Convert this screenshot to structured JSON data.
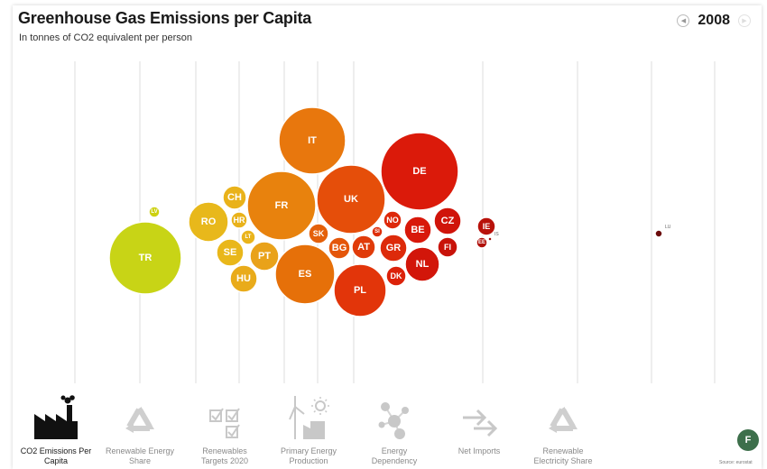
{
  "header": {
    "title": "Greenhouse Gas Emissions per Capita",
    "subtitle": "In tonnes of CO2 equivalent per person",
    "year": "2008",
    "prev_icon": "chevron-left-icon",
    "next_icon": "chevron-right-icon"
  },
  "chart_data": {
    "type": "scatter",
    "title": "Greenhouse Gas Emissions per Capita",
    "subtitle": "In tonnes of CO2 equivalent per person",
    "x_axis_ticks": [
      "",
      "",
      "",
      "",
      "",
      "",
      "",
      "",
      "",
      "",
      ""
    ],
    "x_positions": [
      "",
      "",
      "",
      "",
      "",
      "",
      "",
      "",
      "",
      "",
      ""
    ],
    "color_scale": [
      "#c8d416",
      "#e9b21a",
      "#e8820d",
      "#e64f0a",
      "#db1a0a",
      "#7a0a0a"
    ],
    "points": [
      {
        "label": "TR",
        "value": 5.0,
        "size": 80,
        "color": "#c8d416"
      },
      {
        "label": "LV",
        "value": 5.2,
        "size": 2.2,
        "color": "#cdd111"
      },
      {
        "label": "RO",
        "value": 7.0,
        "size": 21.5,
        "color": "#e8b81b"
      },
      {
        "label": "CH",
        "value": 7.6,
        "size": 7.7,
        "color": "#e9b21a"
      },
      {
        "label": "HR",
        "value": 7.6,
        "size": 4.4,
        "color": "#e9b21a"
      },
      {
        "label": "LT",
        "value": 7.8,
        "size": 3.3,
        "color": "#eab41b"
      },
      {
        "label": "SE",
        "value": 7.3,
        "size": 9.3,
        "color": "#e9b71a"
      },
      {
        "label": "PT",
        "value": 8.6,
        "size": 10.6,
        "color": "#e9a21a"
      },
      {
        "label": "HU",
        "value": 7.6,
        "size": 10.0,
        "color": "#e9ab1a"
      },
      {
        "label": "FR",
        "value": 9.0,
        "size": 64.0,
        "color": "#e8820d"
      },
      {
        "label": "IT",
        "value": 9.4,
        "size": 60.0,
        "color": "#e8770d"
      },
      {
        "label": "ES",
        "value": 9.2,
        "size": 46.0,
        "color": "#e67009"
      },
      {
        "label": "SK",
        "value": 9.5,
        "size": 5.4,
        "color": "#e4600a"
      },
      {
        "label": "BG",
        "value": 9.8,
        "size": 7.6,
        "color": "#e4560a"
      },
      {
        "label": "UK",
        "value": 10.0,
        "size": 61.5,
        "color": "#e54e0a"
      },
      {
        "label": "PL",
        "value": 10.5,
        "size": 38.1,
        "color": "#e2350a"
      },
      {
        "label": "AT",
        "value": 10.3,
        "size": 8.3,
        "color": "#e03b0a"
      },
      {
        "label": "SI",
        "value": 10.7,
        "size": 2.0,
        "color": "#de2f0a"
      },
      {
        "label": "NO",
        "value": 11.0,
        "size": 4.8,
        "color": "#dd280a"
      },
      {
        "label": "GR",
        "value": 11.0,
        "size": 11.2,
        "color": "#dd2a0a"
      },
      {
        "label": "DK",
        "value": 11.2,
        "size": 5.5,
        "color": "#dc220a"
      },
      {
        "label": "DE",
        "value": 11.5,
        "size": 82.0,
        "color": "#db1a0a"
      },
      {
        "label": "BE",
        "value": 12.0,
        "size": 10.7,
        "color": "#d8180a"
      },
      {
        "label": "NL",
        "value": 12.2,
        "size": 16.5,
        "color": "#d2160a"
      },
      {
        "label": "CZ",
        "value": 12.6,
        "size": 10.4,
        "color": "#d0140a"
      },
      {
        "label": "FI",
        "value": 12.8,
        "size": 5.3,
        "color": "#c8130a"
      },
      {
        "label": "IE",
        "value": 14.0,
        "size": 4.4,
        "color": "#b8110a"
      },
      {
        "label": "EE",
        "value": 14.2,
        "size": 1.3,
        "color": "#b0100a"
      },
      {
        "label": "IS",
        "value": 14.4,
        "size": 0.3,
        "color": "#a00e0a"
      },
      {
        "label": "LU",
        "value": 23.5,
        "size": 0.5,
        "color": "#6a0a0a"
      }
    ]
  },
  "tabs": [
    {
      "label_1": "CO2 Emissions Per",
      "label_2": "Capita",
      "icon": "factory-icon",
      "active": true
    },
    {
      "label_1": "Renewable Energy",
      "label_2": "Share",
      "icon": "recycle-icon",
      "active": false
    },
    {
      "label_1": "Renewables",
      "label_2": "Targets 2020",
      "icon": "checkbox-list-icon",
      "active": false
    },
    {
      "label_1": "Primary Energy",
      "label_2": "Production",
      "icon": "wind-solar-icon",
      "active": false
    },
    {
      "label_1": "Energy",
      "label_2": "Dependency",
      "icon": "network-icon",
      "active": false
    },
    {
      "label_1": "Net Imports",
      "label_2": "",
      "icon": "arrows-icon",
      "active": false
    },
    {
      "label_1": "Renewable",
      "label_2": "Electricity Share",
      "icon": "recycle-icon",
      "active": false
    }
  ],
  "footer": {
    "source": "Source: eurostat",
    "logo_text": "F"
  }
}
